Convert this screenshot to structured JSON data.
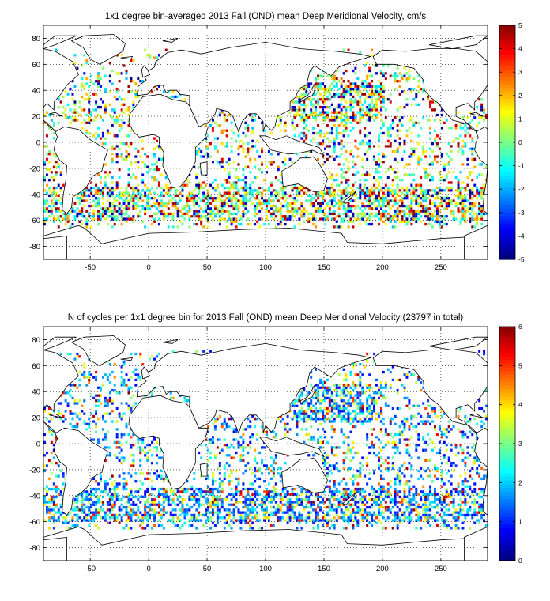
{
  "chart_data": [
    {
      "type": "heatmap",
      "title": "1x1 degree bin-averaged 2013 Fall (OND) mean Deep Meridional Velocity, cm/s",
      "xlabel": "",
      "ylabel": "",
      "xlim": [
        -90,
        290
      ],
      "ylim": [
        -90,
        90
      ],
      "xticks": [
        -50,
        0,
        50,
        100,
        150,
        200,
        250
      ],
      "yticks": [
        80,
        60,
        40,
        20,
        0,
        -20,
        -40,
        -60,
        -80
      ],
      "grid": true,
      "colorbar": {
        "min": -5,
        "max": 5,
        "ticks": [
          5,
          4,
          3,
          2,
          1,
          0,
          -1,
          -2,
          -3,
          -4,
          -5
        ],
        "colormap": "jet",
        "placement": "right"
      }
    },
    {
      "type": "heatmap",
      "title": "N of cycles per 1x1 degree bin for 2013 Fall (OND) mean Deep Meridional Velocity (23797 in total)",
      "xlabel": "",
      "ylabel": "",
      "xlim": [
        -90,
        290
      ],
      "ylim": [
        -90,
        90
      ],
      "xticks": [
        -50,
        0,
        50,
        100,
        150,
        200,
        250
      ],
      "yticks": [
        80,
        60,
        40,
        20,
        0,
        -20,
        -40,
        -60,
        -80
      ],
      "grid": true,
      "colorbar": {
        "min": 0,
        "max": 6,
        "ticks": [
          6,
          5,
          4,
          3,
          2,
          1,
          0
        ],
        "colormap": "jet",
        "placement": "right"
      }
    }
  ]
}
